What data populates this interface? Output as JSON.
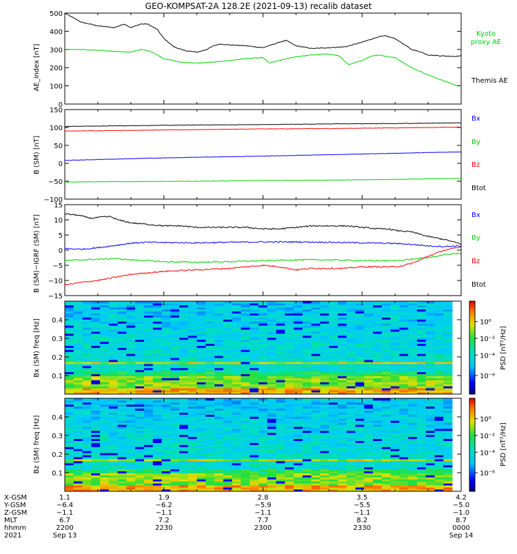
{
  "title": "GEO-KOMPSAT-2A 128.2E (2021-09-13) recalib dataset",
  "chart_data": [
    {
      "type": "line",
      "panel": "ae",
      "ylabel": "AE_index [nT]",
      "ylim": [
        0,
        500
      ],
      "yticks": [
        "0",
        "100",
        "200",
        "300",
        "400",
        "500"
      ],
      "xlim": [
        0,
        120
      ],
      "legend": [
        "Kyoto",
        "proxy AE",
        "Themis AE"
      ],
      "series": [
        {
          "name": "Themis AE",
          "color": "#000000",
          "x": [
            0,
            3,
            5,
            10,
            15,
            18,
            20,
            23,
            25,
            28,
            30,
            33,
            36,
            40,
            43,
            45,
            47,
            50,
            55,
            60,
            65,
            67,
            70,
            75,
            80,
            85,
            90,
            95,
            97,
            100,
            105,
            108,
            110,
            114,
            118,
            120
          ],
          "values": [
            500,
            470,
            450,
            430,
            420,
            440,
            420,
            440,
            440,
            410,
            360,
            315,
            295,
            285,
            300,
            320,
            330,
            325,
            320,
            310,
            340,
            350,
            320,
            305,
            310,
            315,
            340,
            370,
            375,
            360,
            300,
            285,
            270,
            265,
            262,
            265
          ]
        },
        {
          "name": "Kyoto proxy AE",
          "color": "#00d000",
          "x": [
            0,
            5,
            10,
            15,
            20,
            23,
            26,
            30,
            35,
            40,
            45,
            50,
            55,
            60,
            62,
            65,
            70,
            75,
            80,
            83,
            86,
            90,
            93,
            95,
            98,
            100,
            105,
            110,
            113,
            116,
            118,
            120
          ],
          "values": [
            300,
            300,
            295,
            290,
            285,
            300,
            290,
            250,
            230,
            225,
            230,
            240,
            250,
            255,
            225,
            240,
            260,
            270,
            275,
            265,
            215,
            240,
            265,
            270,
            260,
            255,
            200,
            160,
            140,
            120,
            105,
            100
          ]
        }
      ]
    },
    {
      "type": "line",
      "panel": "bsm",
      "ylabel": "B (SM) [nT]",
      "ylim": [
        -100,
        150
      ],
      "yticks": [
        "−100",
        "−50",
        "0",
        "50",
        "100",
        "150"
      ],
      "xlim": [
        0,
        120
      ],
      "legend": [
        "Bx",
        "By",
        "Bz",
        "Btot"
      ],
      "series": [
        {
          "name": "Btot",
          "color": "#000000",
          "x": [
            0,
            20,
            40,
            60,
            80,
            100,
            120
          ],
          "values": [
            103,
            105,
            107,
            108,
            110,
            111,
            113
          ]
        },
        {
          "name": "Bz",
          "color": "#ff0000",
          "x": [
            0,
            20,
            40,
            60,
            80,
            100,
            120
          ],
          "values": [
            90,
            92,
            94,
            96,
            97,
            99,
            101
          ]
        },
        {
          "name": "By",
          "color": "#0000ff",
          "x": [
            0,
            20,
            40,
            60,
            80,
            100,
            120
          ],
          "values": [
            8,
            13,
            17,
            20,
            24,
            28,
            32
          ]
        },
        {
          "name": "Bx",
          "color": "#00d000",
          "x": [
            0,
            20,
            40,
            60,
            80,
            100,
            120
          ],
          "values": [
            -52,
            -51,
            -50,
            -48,
            -47,
            -45,
            -42
          ]
        }
      ]
    },
    {
      "type": "line",
      "panel": "bres",
      "ylabel": "B (SM)−IGRF (SM) [nT]",
      "ylim": [
        -15,
        15
      ],
      "yticks": [
        "−15",
        "−10",
        "−5",
        "0",
        "5",
        "10",
        "15"
      ],
      "xlim": [
        0,
        120
      ],
      "legend": [
        "Bx",
        "By",
        "Bz",
        "Btot"
      ],
      "series": [
        {
          "name": "Btot",
          "color": "#000000",
          "x": [
            0,
            4,
            8,
            12,
            14,
            16,
            20,
            25,
            30,
            35,
            40,
            45,
            50,
            55,
            60,
            65,
            70,
            75,
            80,
            85,
            90,
            95,
            98,
            100,
            105,
            110,
            115,
            120
          ],
          "values": [
            12,
            11.5,
            10.5,
            11,
            11,
            10,
            9,
            8.5,
            8,
            8,
            7.5,
            7.5,
            7.5,
            7.5,
            7,
            7,
            7.5,
            8,
            8,
            8,
            7.5,
            7,
            7,
            6.5,
            6,
            4.5,
            3.5,
            2
          ]
        },
        {
          "name": "By",
          "color": "#0000ff",
          "x": [
            0,
            5,
            10,
            15,
            20,
            25,
            30,
            40,
            50,
            60,
            70,
            80,
            90,
            100,
            105,
            110,
            115,
            120
          ],
          "values": [
            0.5,
            0.3,
            0.8,
            1.5,
            2.3,
            2.6,
            2.5,
            2.4,
            2.6,
            2.7,
            2.7,
            2.6,
            2.4,
            2.2,
            1.9,
            1.4,
            1.2,
            1.4
          ]
        },
        {
          "name": "Bx",
          "color": "#00d000",
          "x": [
            0,
            5,
            10,
            15,
            20,
            30,
            40,
            50,
            60,
            70,
            80,
            90,
            100,
            105,
            110,
            115,
            120
          ],
          "values": [
            -3.5,
            -3.2,
            -3,
            -2.8,
            -3.2,
            -3.8,
            -4,
            -3.8,
            -3.5,
            -3.2,
            -3.2,
            -3.5,
            -3.5,
            -3,
            -2.5,
            -1.5,
            -1
          ]
        },
        {
          "name": "Bz",
          "color": "#ff0000",
          "x": [
            0,
            3,
            6,
            10,
            15,
            20,
            25,
            30,
            40,
            50,
            60,
            65,
            70,
            75,
            80,
            85,
            90,
            95,
            100,
            103,
            106,
            110,
            115,
            120
          ],
          "values": [
            -11.5,
            -11,
            -10.5,
            -10,
            -9,
            -8,
            -7.5,
            -7,
            -6.5,
            -6,
            -5,
            -5.5,
            -6.5,
            -6,
            -6,
            -6,
            -5.5,
            -5.5,
            -5.5,
            -5,
            -4,
            -2,
            0,
            1
          ]
        }
      ]
    },
    {
      "type": "heatmap",
      "panel": "bx-spec",
      "ylabel": "Bx (SM) freq [Hz]",
      "ylim": [
        0,
        0.5
      ],
      "yticks": [
        "0.1",
        "0.2",
        "0.3",
        "0.4"
      ],
      "colorbar_label": "PSD [nT²/Hz]",
      "colorbar_ticks": [
        "10⁰",
        "10⁻²",
        "10⁻⁴",
        "10⁻⁶"
      ],
      "xlim": [
        0,
        120
      ]
    },
    {
      "type": "heatmap",
      "panel": "bz-spec",
      "ylabel": "Bz (SM) freq [Hz]",
      "ylim": [
        0,
        0.5
      ],
      "yticks": [
        "0.1",
        "0.2",
        "0.3",
        "0.4"
      ],
      "colorbar_label": "PSD [nT²/Hz]",
      "colorbar_ticks": [
        "10⁰",
        "10⁻²",
        "10⁻⁴",
        "10⁻⁶"
      ],
      "xlim": [
        0,
        120
      ]
    }
  ],
  "axis_table": {
    "row_labels": [
      "X-GSM",
      "Y-GSM",
      "Z-GSM",
      "MLT",
      "hhmm",
      "2021"
    ],
    "columns": [
      {
        "x": 0,
        "values": [
          "1.1",
          "−6.4",
          "−1.1",
          "6.7",
          "2200",
          "Sep 13"
        ]
      },
      {
        "x": 30,
        "values": [
          "1.9",
          "−6.2",
          "−1.1",
          "7.2",
          "2230",
          ""
        ]
      },
      {
        "x": 60,
        "values": [
          "2.8",
          "−5.9",
          "−1.1",
          "7.7",
          "2300",
          ""
        ]
      },
      {
        "x": 90,
        "values": [
          "3.5",
          "−5.5",
          "−1.1",
          "8.2",
          "2330",
          ""
        ]
      },
      {
        "x": 120,
        "values": [
          "4.2",
          "−5.0",
          "−1.0",
          "8.7",
          "0000",
          "Sep 14"
        ]
      }
    ]
  },
  "colors": {
    "axis": "#000000",
    "kyoto": "#00d000"
  }
}
